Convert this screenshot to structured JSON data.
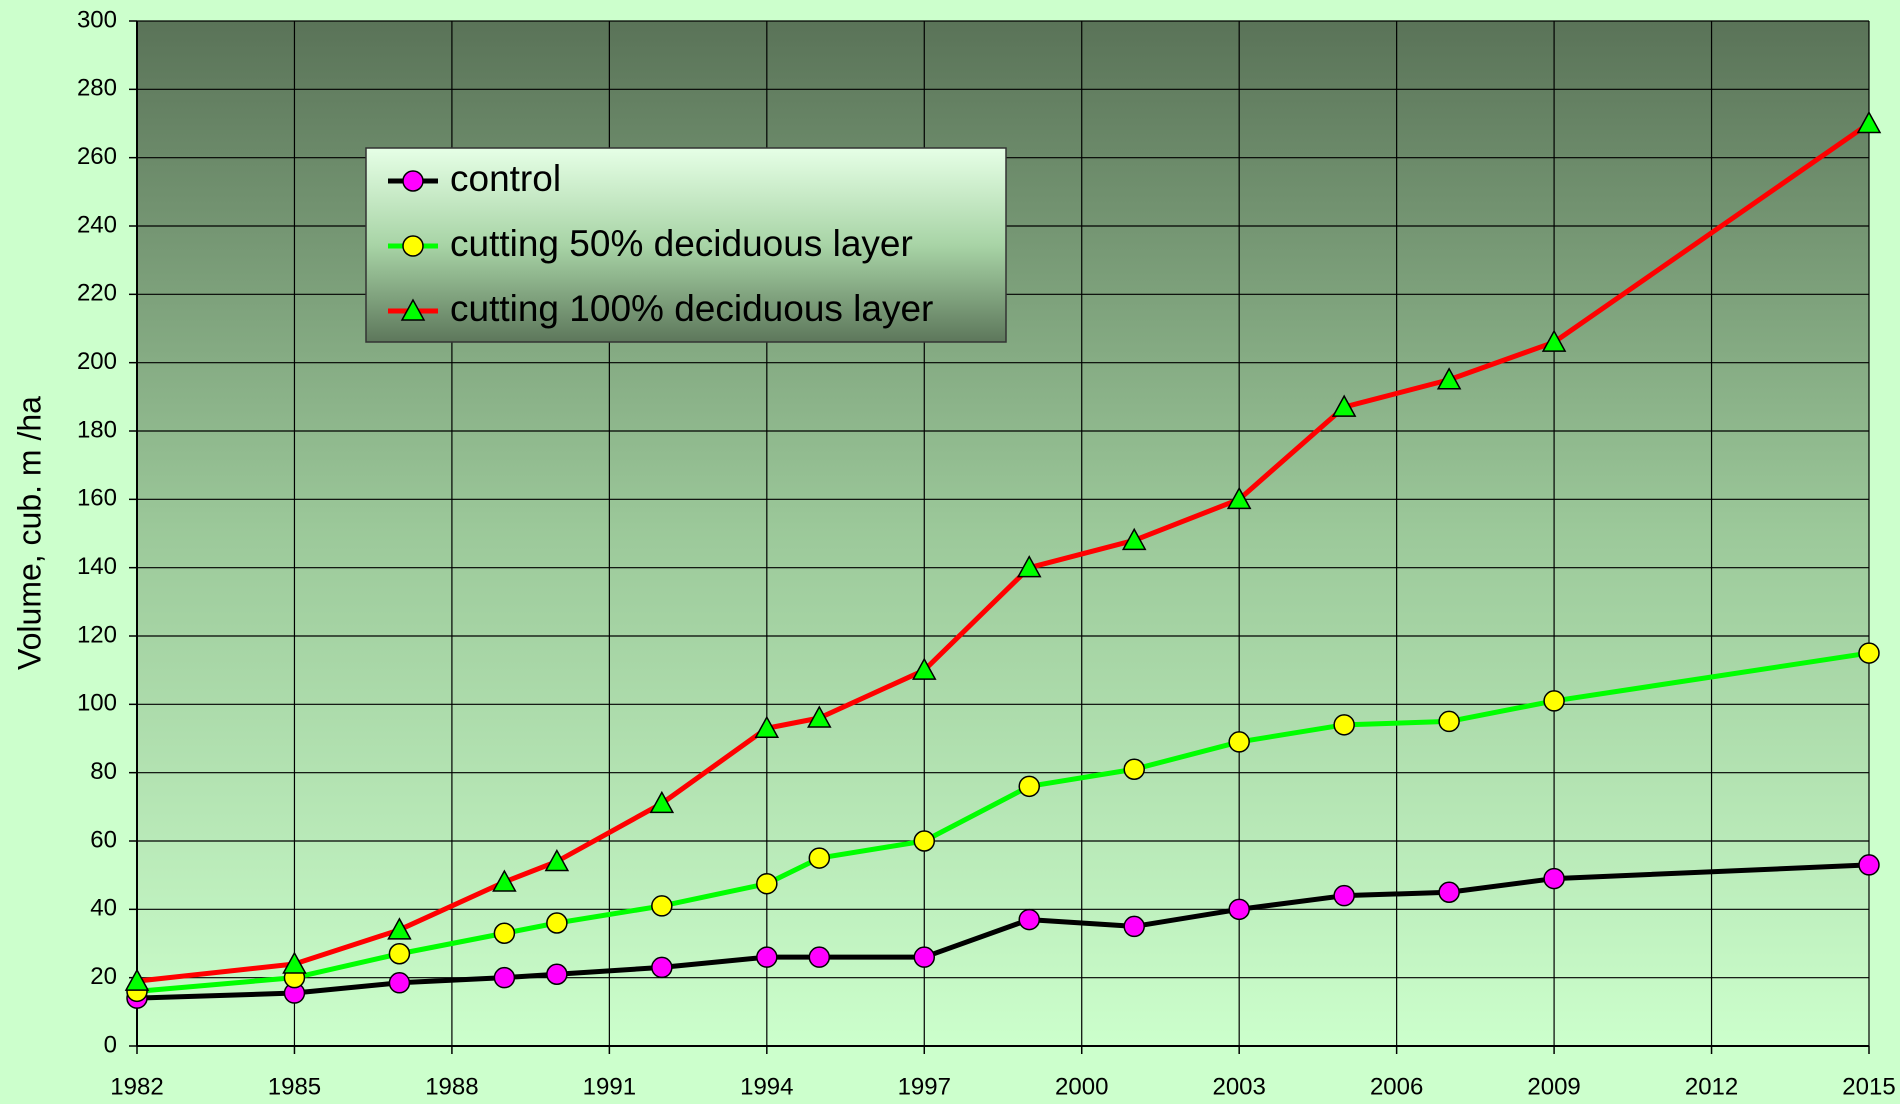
{
  "chart_data": {
    "type": "line",
    "y_label": "Volume, cub. m /ha",
    "x": [
      1982,
      1985,
      1987,
      1989,
      1990,
      1992,
      1994,
      1995,
      1997,
      1999,
      2001,
      2003,
      2005,
      2007,
      2009,
      2015
    ],
    "series": [
      {
        "name": "control",
        "color": "#000000",
        "marker_color": "#ff00ff",
        "marker": "circle",
        "values": [
          14,
          15.5,
          18.5,
          20,
          21,
          23,
          26,
          26,
          26,
          37,
          35,
          40,
          44,
          45,
          49,
          53
        ]
      },
      {
        "name": "cutting 50% deciduous layer",
        "color": "#00ff00",
        "marker_color": "#ffff00",
        "marker": "circle",
        "values": [
          16,
          20,
          27,
          33,
          36,
          41,
          47.5,
          55,
          60,
          76,
          81,
          89,
          94,
          95,
          101,
          115
        ]
      },
      {
        "name": "cutting 100% deciduous layer",
        "color": "#ff0000",
        "marker_color": "#00ff00",
        "marker": "triangle",
        "values": [
          19,
          24,
          34,
          48,
          54,
          71,
          93,
          96,
          110,
          140,
          148,
          160,
          187,
          195,
          206,
          270
        ]
      }
    ],
    "xlim": [
      1982,
      2015
    ],
    "xticks": [
      1982,
      1985,
      1988,
      1991,
      1994,
      1997,
      2000,
      2003,
      2006,
      2009,
      2012,
      2015
    ],
    "ylim": [
      0,
      300
    ],
    "yticks": [
      0,
      20,
      40,
      60,
      80,
      100,
      120,
      140,
      160,
      180,
      200,
      220,
      240,
      260,
      280,
      300
    ],
    "grid": true,
    "legend": "upper left"
  }
}
